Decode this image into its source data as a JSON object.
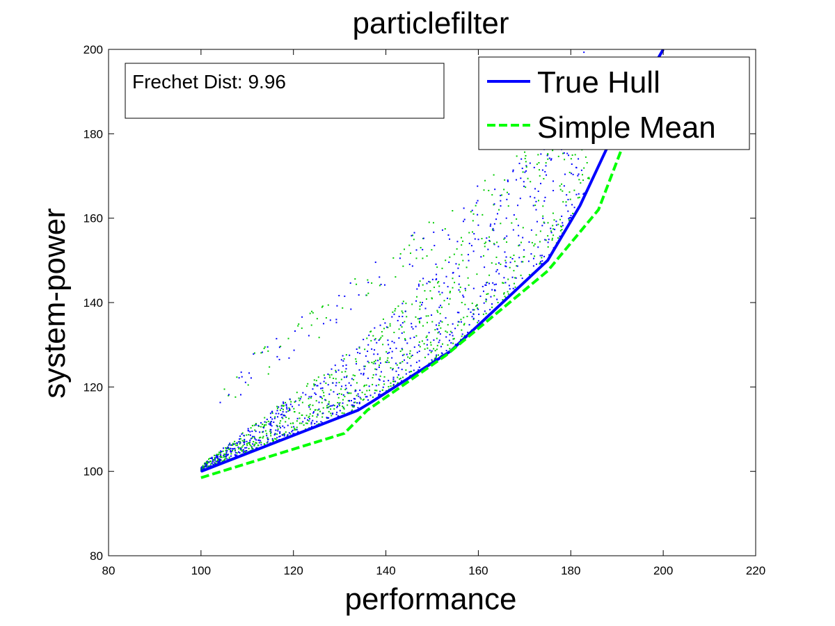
{
  "chart_data": {
    "type": "line",
    "title": "particlefilter",
    "xlabel": "performance",
    "ylabel": "system-power",
    "xlim": [
      80,
      220
    ],
    "ylim": [
      80,
      200
    ],
    "xticks": [
      80,
      100,
      120,
      140,
      160,
      180,
      200,
      220
    ],
    "yticks": [
      80,
      100,
      120,
      140,
      160,
      180,
      200
    ],
    "grid": false,
    "legend_position": "top-right",
    "annotation": "Frechet Dist: 9.96",
    "series": [
      {
        "name": "True Hull",
        "style": "solid",
        "color": "#0000ff",
        "x": [
          100,
          134,
          137,
          154,
          175,
          182,
          188,
          200
        ],
        "y": [
          100,
          114.5,
          116.5,
          128.5,
          150,
          163,
          177,
          200
        ]
      },
      {
        "name": "Simple Mean",
        "style": "dashed",
        "color": "#00ff00",
        "x": [
          100,
          131,
          136,
          153,
          175,
          186,
          194
        ],
        "y": [
          98.5,
          109,
          114.5,
          127.5,
          147.5,
          162,
          185
        ]
      }
    ],
    "scatter_colors": [
      "#0000ff",
      "#00cc00"
    ]
  }
}
